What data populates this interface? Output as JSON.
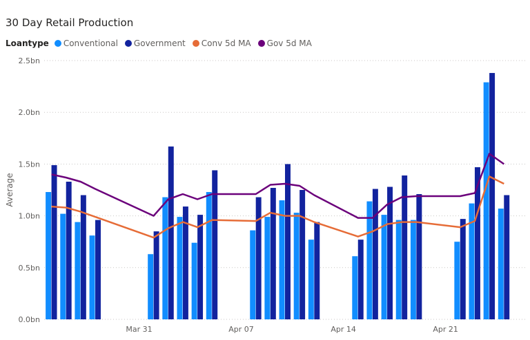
{
  "chart_data": {
    "type": "bar",
    "title": "30 Day Retail Production",
    "legend_title": "Loantype",
    "ylabel": "Average",
    "ylim": [
      0,
      2.5
    ],
    "y_ticks": [
      {
        "value": 0,
        "label": "0.0bn"
      },
      {
        "value": 0.5,
        "label": "0.5bn"
      },
      {
        "value": 1.0,
        "label": "1.0bn"
      },
      {
        "value": 1.5,
        "label": "1.5bn"
      },
      {
        "value": 2.0,
        "label": "2.0bn"
      },
      {
        "value": 2.5,
        "label": "2.5bn"
      }
    ],
    "x_range": [
      "2023-03-25",
      "2023-04-26"
    ],
    "x_ticks": [
      {
        "date": "2023-03-31",
        "label": "Mar 31"
      },
      {
        "date": "2023-04-07",
        "label": "Apr 07"
      },
      {
        "date": "2023-04-14",
        "label": "Apr 14"
      },
      {
        "date": "2023-04-21",
        "label": "Apr 21"
      }
    ],
    "dates": [
      "2023-03-25",
      "2023-03-26",
      "2023-03-27",
      "2023-03-28",
      "2023-03-29",
      "2023-04-01",
      "2023-04-02",
      "2023-04-03",
      "2023-04-04",
      "2023-04-05",
      "2023-04-08",
      "2023-04-09",
      "2023-04-10",
      "2023-04-11",
      "2023-04-12",
      "2023-04-15",
      "2023-04-16",
      "2023-04-17",
      "2023-04-18",
      "2023-04-19",
      "2023-04-22",
      "2023-04-23",
      "2023-04-24",
      "2023-04-25",
      "2023-04-26"
    ],
    "series": [
      {
        "name": "Conventional",
        "kind": "bar",
        "color": "#118DFF",
        "values": [
          1.23,
          1.02,
          0.94,
          0.81,
          null,
          0.63,
          1.18,
          0.99,
          0.74,
          1.23,
          0.86,
          0.99,
          1.15,
          1.03,
          0.77,
          0.61,
          1.14,
          1.01,
          0.96,
          0.96,
          0.75,
          1.12,
          2.29,
          1.07,
          null
        ]
      },
      {
        "name": "Government",
        "kind": "bar",
        "color": "#12239E",
        "values": [
          1.49,
          1.33,
          1.2,
          0.96,
          null,
          0.85,
          1.67,
          1.09,
          1.01,
          1.44,
          1.18,
          1.27,
          1.5,
          1.25,
          0.94,
          0.77,
          1.26,
          1.28,
          1.39,
          1.21,
          0.97,
          1.47,
          2.38,
          1.2,
          null
        ]
      },
      {
        "name": "Conv 5d MA",
        "kind": "line",
        "color": "#E66C37",
        "values": [
          1.09,
          1.08,
          1.04,
          0.99,
          null,
          0.79,
          0.88,
          0.94,
          0.89,
          0.96,
          0.95,
          1.03,
          1.0,
          1.0,
          0.94,
          0.8,
          0.85,
          0.92,
          0.94,
          0.94,
          0.89,
          0.95,
          1.38,
          1.31,
          null
        ]
      },
      {
        "name": "Gov 5d MA",
        "kind": "line",
        "color": "#6B007B",
        "values": [
          1.4,
          1.37,
          1.33,
          1.26,
          null,
          1.0,
          1.16,
          1.21,
          1.16,
          1.21,
          1.21,
          1.3,
          1.31,
          1.29,
          1.2,
          0.98,
          0.98,
          1.11,
          1.18,
          1.19,
          1.19,
          1.22,
          1.6,
          1.5,
          null
        ]
      }
    ]
  }
}
